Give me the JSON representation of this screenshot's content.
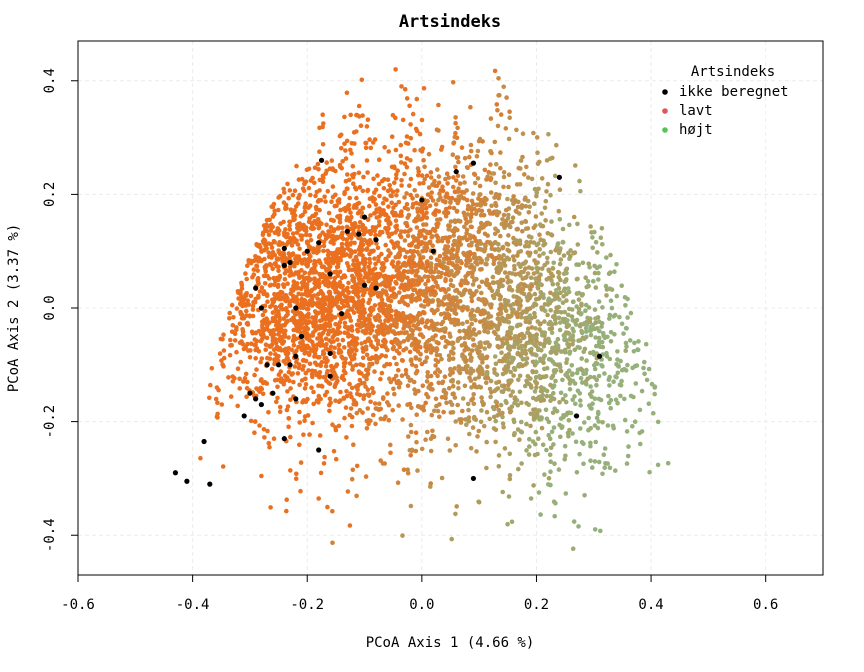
{
  "chart_data": {
    "type": "scatter",
    "title": "Artsindeks",
    "xlabel": "PCoA Axis 1 (4.66 %)",
    "ylabel": "PCoA Axis 2 (3.37 %)",
    "xlim": [
      -0.6,
      0.7
    ],
    "ylim": [
      -0.47,
      0.47
    ],
    "xticks": [
      -0.6,
      -0.4,
      -0.2,
      0.0,
      0.2,
      0.4,
      0.6
    ],
    "xtick_labels": [
      "-0.6",
      "-0.4",
      "-0.2",
      "0.0",
      "0.2",
      "0.4",
      "0.6"
    ],
    "yticks": [
      -0.4,
      -0.2,
      0.0,
      0.2,
      0.4
    ],
    "ytick_labels": [
      "-0.4",
      "-0.2",
      "0.0",
      "0.2",
      "0.4"
    ],
    "grid": true,
    "legend": {
      "title": "Artsindeks",
      "placement": "top-right",
      "entries": [
        {
          "label": "ikke beregnet",
          "color": "#000000"
        },
        {
          "label": "lavt",
          "color": "#e05555"
        },
        {
          "label": "højt",
          "color": "#55c355"
        }
      ]
    },
    "colors": {
      "low": "#ea7020",
      "high": "#95b07a",
      "not_computed": "#000000"
    },
    "series": [
      {
        "name": "ikke beregnet",
        "color": "#000000",
        "points": [
          [
            -0.43,
            -0.29
          ],
          [
            -0.41,
            -0.305
          ],
          [
            -0.37,
            -0.31
          ],
          [
            -0.38,
            -0.235
          ],
          [
            -0.31,
            -0.19
          ],
          [
            -0.3,
            -0.15
          ],
          [
            -0.29,
            -0.16
          ],
          [
            -0.28,
            -0.17
          ],
          [
            -0.27,
            -0.1
          ],
          [
            -0.26,
            -0.15
          ],
          [
            -0.25,
            -0.1
          ],
          [
            -0.24,
            -0.23
          ],
          [
            -0.23,
            -0.1
          ],
          [
            -0.22,
            -0.085
          ],
          [
            -0.22,
            -0.16
          ],
          [
            -0.21,
            -0.05
          ],
          [
            -0.18,
            -0.25
          ],
          [
            -0.16,
            -0.12
          ],
          [
            -0.16,
            -0.08
          ],
          [
            -0.14,
            -0.01
          ],
          [
            -0.29,
            0.035
          ],
          [
            -0.28,
            0.0
          ],
          [
            -0.24,
            0.075
          ],
          [
            -0.23,
            0.08
          ],
          [
            -0.24,
            0.105
          ],
          [
            -0.2,
            0.1
          ],
          [
            -0.18,
            0.115
          ],
          [
            -0.16,
            0.06
          ],
          [
            -0.13,
            0.135
          ],
          [
            -0.11,
            0.13
          ],
          [
            -0.1,
            0.16
          ],
          [
            -0.08,
            0.12
          ],
          [
            -0.08,
            0.035
          ],
          [
            -0.1,
            0.04
          ],
          [
            -0.175,
            0.26
          ],
          [
            0.0,
            0.19
          ],
          [
            0.02,
            0.1
          ],
          [
            0.06,
            0.24
          ],
          [
            0.09,
            0.255
          ],
          [
            0.24,
            0.23
          ],
          [
            0.09,
            -0.3
          ],
          [
            0.27,
            -0.19
          ],
          [
            0.31,
            -0.085
          ],
          [
            -0.22,
            0.0
          ]
        ]
      }
    ]
  }
}
